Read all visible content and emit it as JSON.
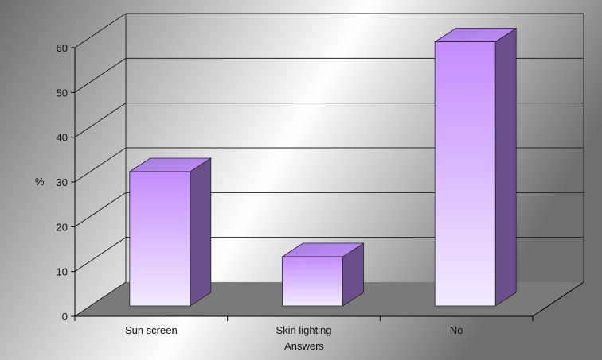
{
  "chart_data": {
    "type": "bar",
    "three_d": true,
    "categories": [
      "Sun screen",
      "Skin lighting",
      "No"
    ],
    "values": [
      30,
      11,
      59
    ],
    "title": "",
    "xlabel": "Answers",
    "ylabel": "%",
    "ylim": [
      0,
      60
    ],
    "yticks": [
      0,
      10,
      20,
      30,
      40,
      50,
      60
    ],
    "grid": true,
    "legend": "none"
  },
  "colors": {
    "background_dark": "#6e6e6e",
    "background_light": "#ffffff",
    "bar_top": "#c48cff",
    "bar_bottom": "#f3ebff",
    "bar_side": "#6a4f8c",
    "bar_cap": "#a07fd4",
    "floor": "#7a7a7a",
    "gridline": "#222222"
  }
}
